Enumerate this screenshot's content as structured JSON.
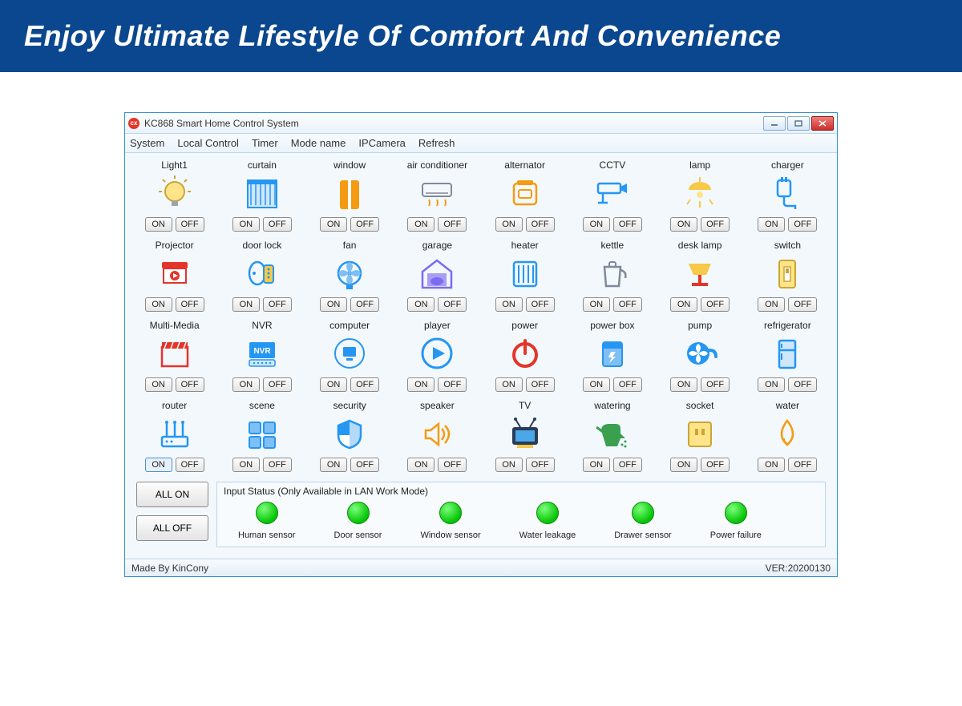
{
  "banner": {
    "text": "Enjoy Ultimate Lifestyle Of Comfort And Convenience",
    "bg": "#0a478e",
    "color": "#ffffff"
  },
  "window": {
    "title": "KC868 Smart Home Control System",
    "menu": [
      "System",
      "Local Control",
      "Timer",
      "Mode name",
      "IPCamera",
      "Refresh"
    ],
    "devices": [
      {
        "label": "Light1",
        "icon": "bulb",
        "color": "#f7c948"
      },
      {
        "label": "curtain",
        "icon": "curtain",
        "color": "#2596f2"
      },
      {
        "label": "window",
        "icon": "window",
        "color": "#f59b12"
      },
      {
        "label": "air conditioner",
        "icon": "ac",
        "color": "#808999"
      },
      {
        "label": "alternator",
        "icon": "alternator",
        "color": "#f59b12"
      },
      {
        "label": "CCTV",
        "icon": "cctv",
        "color": "#2596f2"
      },
      {
        "label": "lamp",
        "icon": "lamp",
        "color": "#f7c948"
      },
      {
        "label": "charger",
        "icon": "charger",
        "color": "#2596f2"
      },
      {
        "label": "Projector",
        "icon": "projector",
        "color": "#e5342a"
      },
      {
        "label": "door lock",
        "icon": "lock",
        "color": "#2596f2"
      },
      {
        "label": "fan",
        "icon": "fan",
        "color": "#2596f2"
      },
      {
        "label": "garage",
        "icon": "garage",
        "color": "#7b6cf0"
      },
      {
        "label": "heater",
        "icon": "heater",
        "color": "#2596f2"
      },
      {
        "label": "kettle",
        "icon": "kettle",
        "color": "#808999"
      },
      {
        "label": "desk lamp",
        "icon": "desklamp",
        "color": "#f7c948"
      },
      {
        "label": "switch",
        "icon": "switch",
        "color": "#f7c948"
      },
      {
        "label": "Multi-Media",
        "icon": "media",
        "color": "#e5342a"
      },
      {
        "label": "NVR",
        "icon": "nvr",
        "color": "#2596f2"
      },
      {
        "label": "computer",
        "icon": "computer",
        "color": "#2596f2"
      },
      {
        "label": "player",
        "icon": "player",
        "color": "#2596f2"
      },
      {
        "label": "power",
        "icon": "power",
        "color": "#e5342a"
      },
      {
        "label": "power box",
        "icon": "powerbox",
        "color": "#2596f2"
      },
      {
        "label": "pump",
        "icon": "pump",
        "color": "#2596f2"
      },
      {
        "label": "refrigerator",
        "icon": "fridge",
        "color": "#2596f2"
      },
      {
        "label": "router",
        "icon": "router",
        "color": "#2596f2",
        "on_active": true
      },
      {
        "label": "scene",
        "icon": "scene",
        "color": "#2596f2"
      },
      {
        "label": "security",
        "icon": "security",
        "color": "#2596f2"
      },
      {
        "label": "speaker",
        "icon": "speaker",
        "color": "#f59b12"
      },
      {
        "label": "TV",
        "icon": "tv",
        "color": "#2b3b58"
      },
      {
        "label": "watering",
        "icon": "watering",
        "color": "#3aa050"
      },
      {
        "label": "socket",
        "icon": "socket",
        "color": "#f7c948"
      },
      {
        "label": "water",
        "icon": "water",
        "color": "#f59b12"
      }
    ],
    "buttons": {
      "on": "ON",
      "off": "OFF",
      "all_on": "ALL ON",
      "all_off": "ALL OFF"
    },
    "input_status": {
      "title": "Input Status (Only Available in LAN Work Mode)",
      "sensors": [
        "Human sensor",
        "Door sensor",
        "Window sensor",
        "Water leakage",
        "Drawer sensor",
        "Power failure"
      ],
      "led_color": "#05c405"
    },
    "statusbar": {
      "left": "Made By KinCony",
      "right": "VER:20200130"
    }
  }
}
